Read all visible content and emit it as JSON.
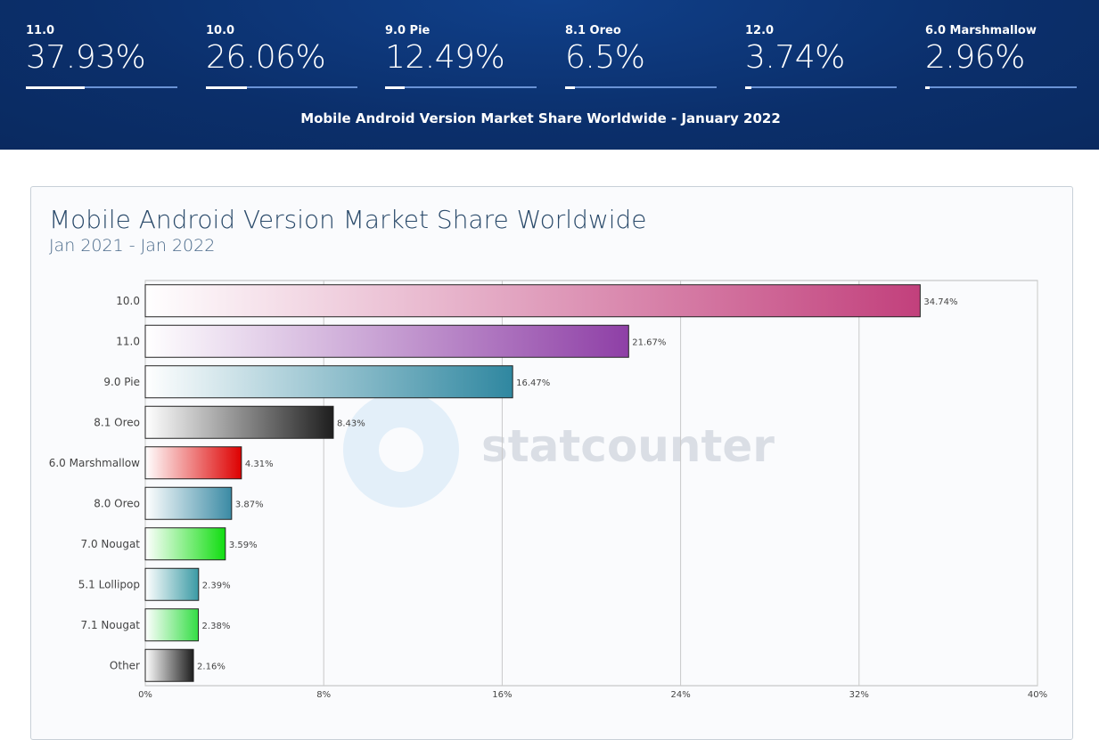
{
  "header": {
    "stats": [
      {
        "label": "11.0",
        "value": "37.93%",
        "fill_percent": 37.93
      },
      {
        "label": "10.0",
        "value": "26.06%",
        "fill_percent": 26.06
      },
      {
        "label": "9.0 Pie",
        "value": "12.49%",
        "fill_percent": 12.49
      },
      {
        "label": "8.1 Oreo",
        "value": "6.5%",
        "fill_percent": 6.5
      },
      {
        "label": "12.0",
        "value": "3.74%",
        "fill_percent": 3.74
      },
      {
        "label": "6.0 Marshmallow",
        "value": "2.96%",
        "fill_percent": 2.96
      }
    ],
    "title": "Mobile Android Version Market Share Worldwide - January 2022"
  },
  "watermark": "statcounter",
  "chart_data": {
    "type": "bar",
    "orientation": "horizontal",
    "title": "Mobile Android Version Market Share Worldwide",
    "subtitle": "Jan 2021 - Jan 2022",
    "categories": [
      "10.0",
      "11.0",
      "9.0 Pie",
      "8.1 Oreo",
      "6.0 Marshmallow",
      "8.0 Oreo",
      "7.0 Nougat",
      "5.1 Lollipop",
      "7.1 Nougat",
      "Other"
    ],
    "values": [
      34.74,
      21.67,
      16.47,
      8.43,
      4.31,
      3.87,
      3.59,
      2.39,
      2.38,
      2.16
    ],
    "data_labels": [
      "34.74%",
      "21.67%",
      "16.47%",
      "8.43%",
      "4.31%",
      "3.87%",
      "3.59%",
      "2.39%",
      "2.38%",
      "2.16%"
    ],
    "colors": [
      "#c2407c",
      "#8e3fa6",
      "#2f87a0",
      "#1e1e1e",
      "#dd0000",
      "#3a8aa4",
      "#11dd11",
      "#3a9aa4",
      "#33dd44",
      "#1e1e1e"
    ],
    "xlim": [
      0,
      40
    ],
    "xticks": [
      "0%",
      "8%",
      "16%",
      "24%",
      "32%",
      "40%"
    ],
    "grid": true
  }
}
